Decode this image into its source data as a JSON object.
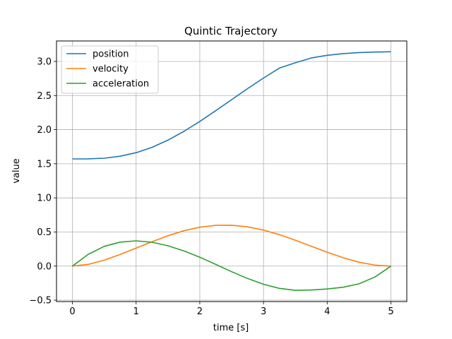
{
  "chart_data": {
    "type": "line",
    "title": "Quintic Trajectory",
    "xlabel": "time [s]",
    "ylabel": "value",
    "xlim": [
      -0.25,
      5.25
    ],
    "ylim": [
      -0.52,
      3.3
    ],
    "xticks": [
      0,
      1,
      2,
      3,
      4,
      5
    ],
    "xtick_labels": [
      "0",
      "1",
      "2",
      "3",
      "4",
      "5"
    ],
    "yticks": [
      -0.5,
      0.0,
      0.5,
      1.0,
      1.5,
      2.0,
      2.5,
      3.0
    ],
    "ytick_labels": [
      "−0.5",
      "0.0",
      "0.5",
      "1.0",
      "1.5",
      "2.0",
      "2.5",
      "3.0"
    ],
    "grid": true,
    "legend_position": "upper-left",
    "x": [
      0,
      0.25,
      0.5,
      0.75,
      1.0,
      1.25,
      1.5,
      1.75,
      2.0,
      2.25,
      2.5,
      2.75,
      3.0,
      3.25,
      3.5,
      3.75,
      4.0,
      4.25,
      4.5,
      4.75,
      5.0
    ],
    "series": [
      {
        "name": "position",
        "color": "#1f77b4",
        "values": [
          1.571,
          1.572,
          1.582,
          1.61,
          1.662,
          1.741,
          1.847,
          1.975,
          2.121,
          2.278,
          2.44,
          2.601,
          2.757,
          2.902,
          2.98,
          3.05,
          3.09,
          3.115,
          3.13,
          3.137,
          3.142
        ]
      },
      {
        "name": "velocity",
        "color": "#ff7f0e",
        "values": [
          0.0,
          0.026,
          0.087,
          0.17,
          0.264,
          0.358,
          0.445,
          0.518,
          0.57,
          0.597,
          0.599,
          0.575,
          0.528,
          0.461,
          0.38,
          0.292,
          0.204,
          0.123,
          0.057,
          0.014,
          0.0
        ]
      },
      {
        "name": "acceleration",
        "color": "#2ca02c",
        "values": [
          0.0,
          0.174,
          0.29,
          0.352,
          0.37,
          0.35,
          0.298,
          0.222,
          0.13,
          0.025,
          -0.082,
          -0.181,
          -0.266,
          -0.326,
          -0.355,
          -0.35,
          -0.336,
          -0.31,
          -0.26,
          -0.16,
          0.0
        ]
      }
    ]
  }
}
